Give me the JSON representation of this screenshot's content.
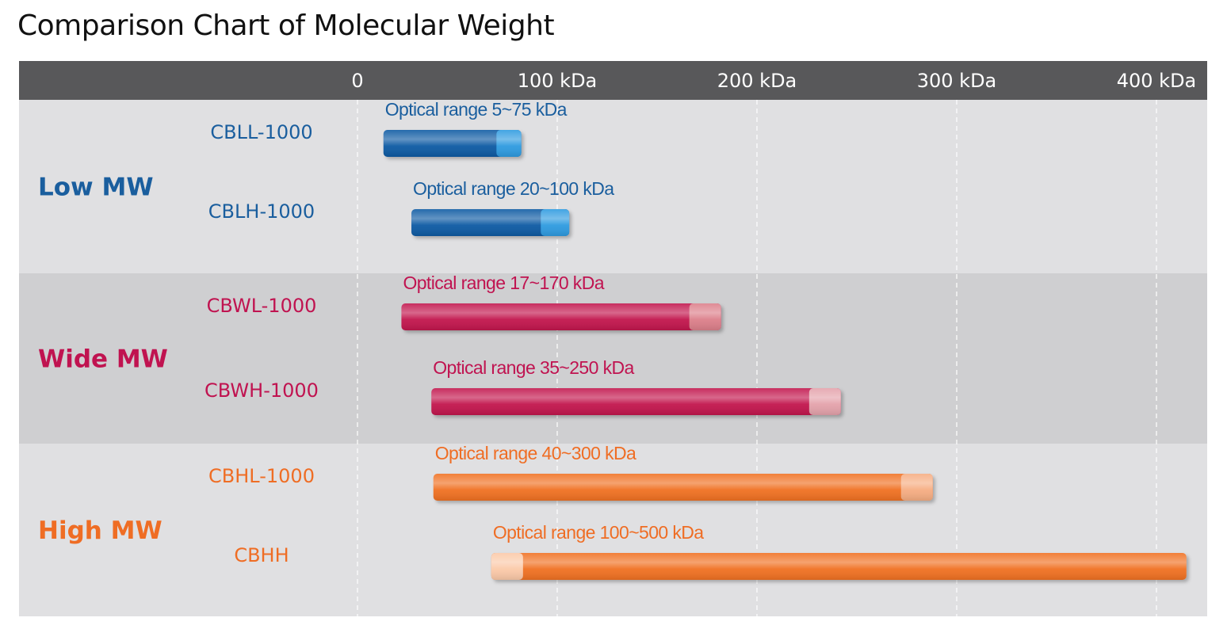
{
  "title": "Comparison Chart of Molecular Weight",
  "chart_data": {
    "type": "bar",
    "orientation": "horizontal",
    "title": "Comparison Chart of Molecular Weight",
    "xlim": [
      0,
      430
    ],
    "x_ticks": [
      {
        "value": 0,
        "label": "0"
      },
      {
        "value": 100,
        "label": "100 kDa"
      },
      {
        "value": 200,
        "label": "200 kDa"
      },
      {
        "value": 300,
        "label": "300 kDa"
      },
      {
        "value": 400,
        "label": "400 kDa"
      }
    ],
    "grid": true,
    "groups": [
      {
        "name": "Low MW",
        "color": "#1a5e9e",
        "band_color": "#e0e0e2",
        "items": [
          {
            "name": "CBLL-1000",
            "start": 13,
            "end": 82,
            "optimal": [
              5,
              75
            ],
            "label": "Optical range 5~75 kDa",
            "bar_dark": "#0f5aa3",
            "bar_light": "#2e9be0"
          },
          {
            "name": "CBLH-1000",
            "start": 27,
            "end": 106,
            "optimal": [
              20,
              100
            ],
            "label": "Optical range 20~100 kDa",
            "bar_dark": "#0f5aa3",
            "bar_light": "#2e9be0"
          }
        ]
      },
      {
        "name": "Wide MW",
        "color": "#c01350",
        "band_color": "#cfcfd1",
        "items": [
          {
            "name": "CBWL-1000",
            "start": 22,
            "end": 182,
            "optimal": [
              17,
              170
            ],
            "label": "Optical range 17~170 kDa",
            "bar_dark": "#c2124e",
            "bar_light": "#dc7f8a"
          },
          {
            "name": "CBWH-1000",
            "start": 37,
            "end": 242,
            "optimal": [
              35,
              250
            ],
            "label": "Optical range 35~250 kDa",
            "bar_dark": "#c2124e",
            "bar_light": "#e4a2ab"
          }
        ]
      },
      {
        "name": "High MW",
        "color": "#ef6d24",
        "band_color": "#e0e0e2",
        "items": [
          {
            "name": "CBHL-1000",
            "start": 38,
            "end": 288,
            "optimal": [
              40,
              300
            ],
            "label": "Optical range 40~300 kDa",
            "bar_dark": "#f07124",
            "bar_light": "#f6ad82"
          },
          {
            "name": "CBHH",
            "start": 67,
            "end": 415,
            "optimal": [
              100,
              500
            ],
            "label": "Optical range 100~500 kDa",
            "bar_dark": "#f07124",
            "bar_light": "#fbc9a8",
            "light_at_start": true
          }
        ]
      }
    ]
  }
}
